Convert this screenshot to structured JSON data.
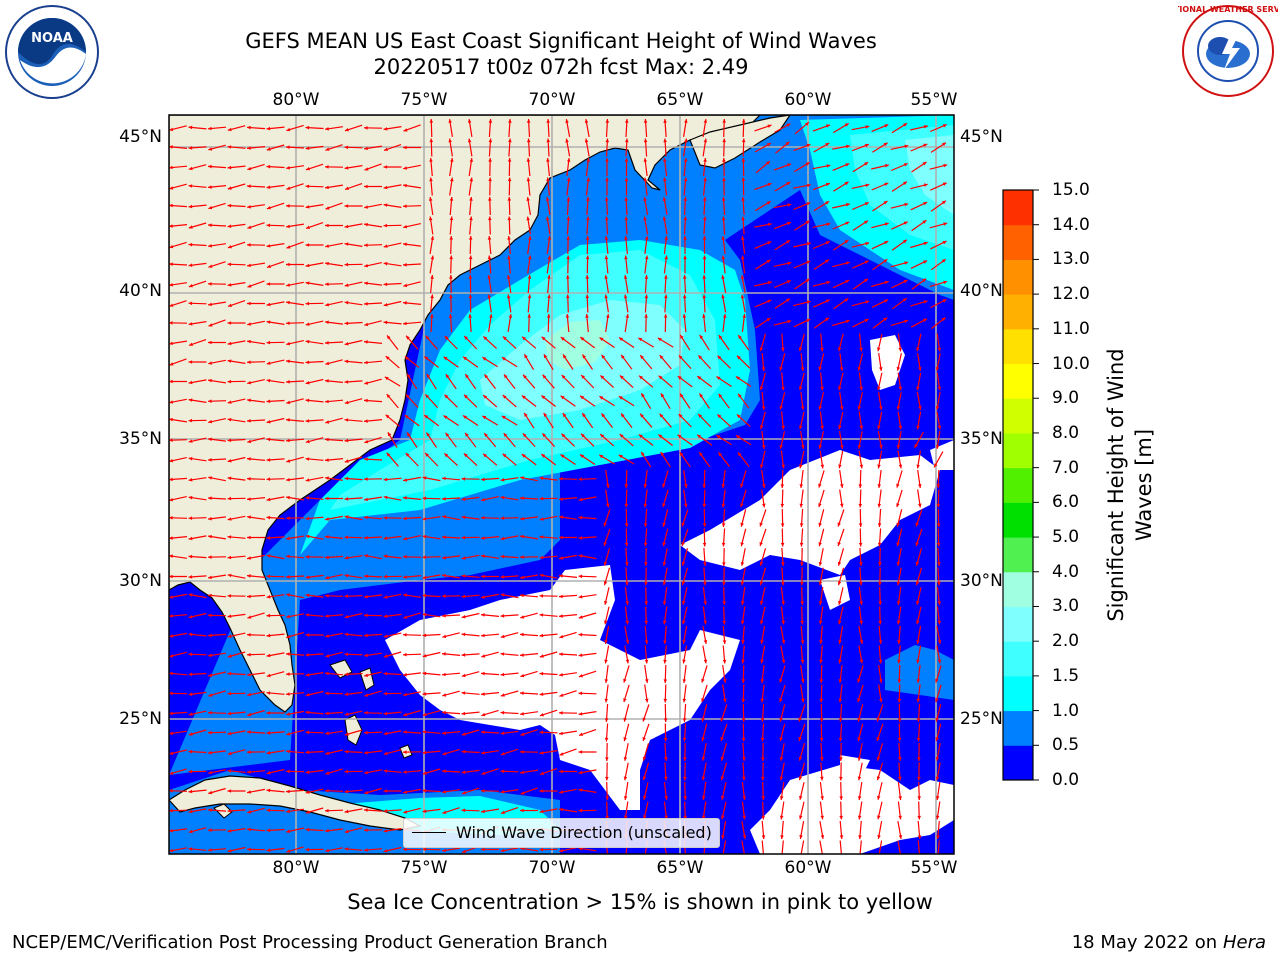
{
  "title_line1": "GEFS MEAN US East Coast Significant Height of Wind Waves",
  "title_line2": "20220517 t00z 072h fcst    Max: 2.49",
  "lon_labels": [
    "80°W",
    "75°W",
    "70°W",
    "65°W",
    "60°W",
    "55°W"
  ],
  "lat_labels": [
    "45°N",
    "40°N",
    "35°N",
    "30°N",
    "25°N"
  ],
  "legend_label": "Wind Wave Direction (unscaled)",
  "colorbar": {
    "title": "Significant Height of Wind Waves [m]",
    "ticks": [
      "0.0",
      "0.5",
      "1.0",
      "1.5",
      "2.0",
      "3.0",
      "4.0",
      "5.0",
      "6.0",
      "7.0",
      "8.0",
      "9.0",
      "10.0",
      "11.0",
      "12.0",
      "13.0",
      "14.0",
      "15.0"
    ],
    "colors": [
      "#0000ff",
      "#0080ff",
      "#00ffff",
      "#40ffff",
      "#80ffff",
      "#a0ffe0",
      "#50f050",
      "#00e000",
      "#50f000",
      "#a0ff00",
      "#d0ff00",
      "#ffff00",
      "#ffe000",
      "#ffb000",
      "#ff9000",
      "#ff6000",
      "#ff3000"
    ]
  },
  "ice_note": "Sea Ice Concentration > 15% is shown in pink to yellow",
  "footer_left": "NCEP/EMC/Verification Post Processing Product Generation Branch",
  "footer_date": "18 May 2022 on",
  "footer_machine": "Hera",
  "logo_left": "NOAA",
  "logo_right_text": "NATIONAL WEATHER SERVICE",
  "colors": {
    "land": "#efeedb",
    "arrow": "#ff0000",
    "grid": "#b0b0b0"
  }
}
